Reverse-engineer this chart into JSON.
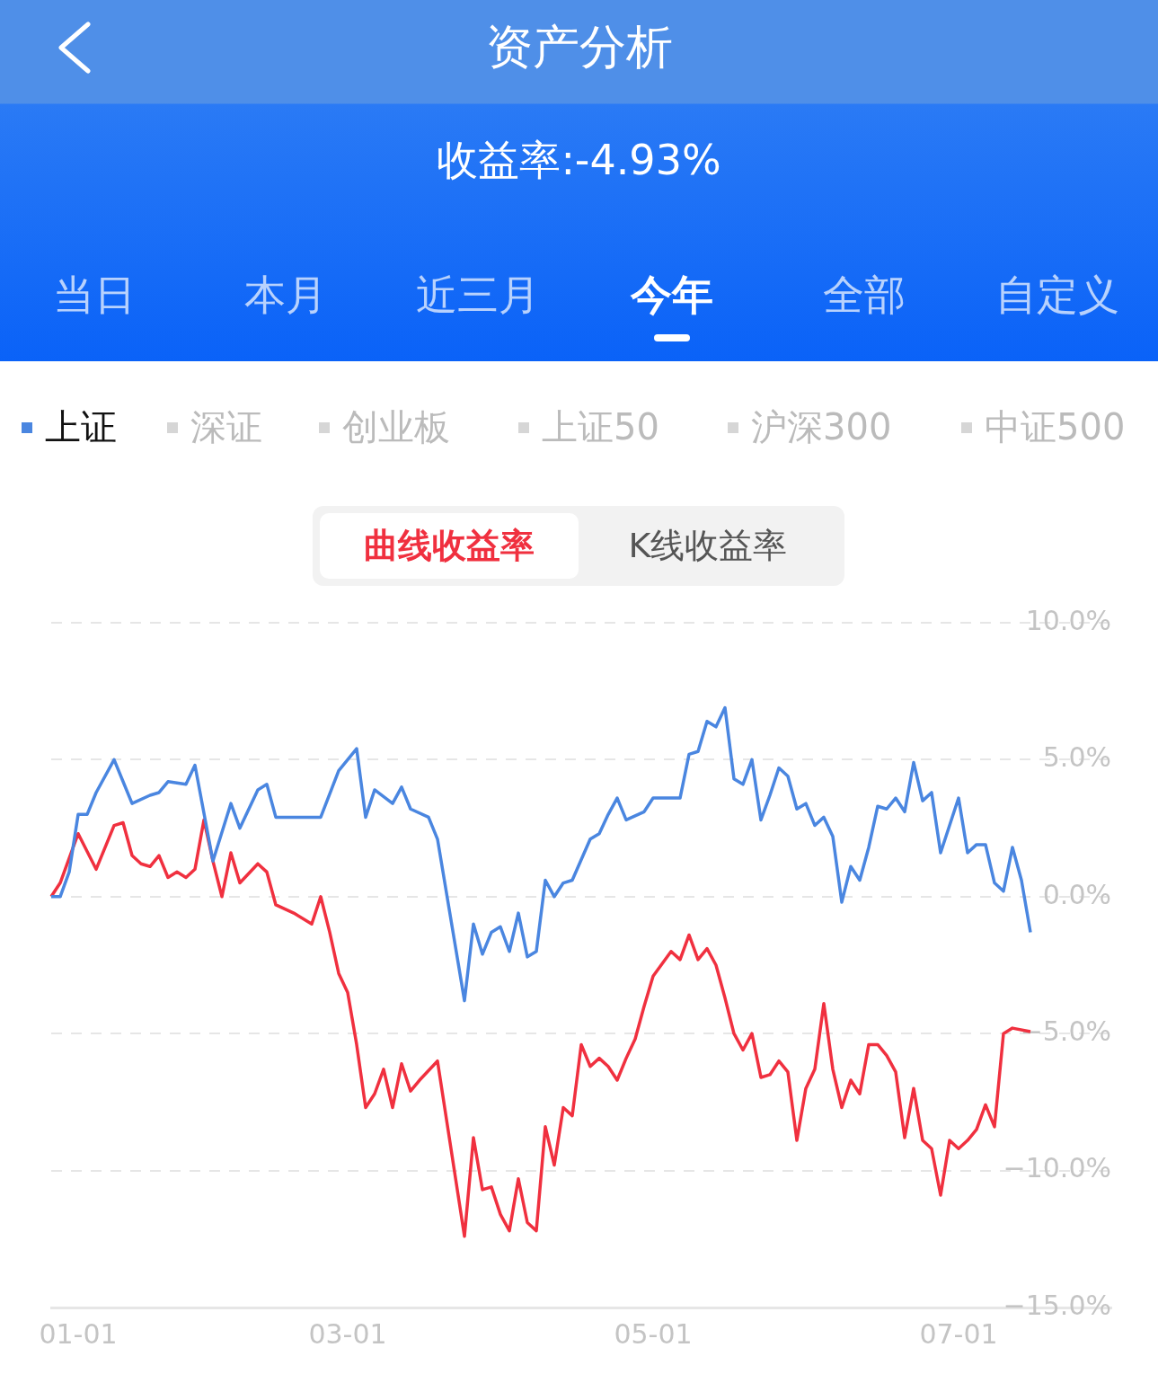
{
  "chart_data": {
    "type": "line",
    "title": "资产分析",
    "subtitle": "收益率:-4.93%",
    "annotations": [
      "当日",
      "本月",
      "近三月",
      "今年",
      "全部",
      "自定义",
      "深证",
      "创业板",
      "上证50",
      "沪深300",
      "中证500",
      "曲线收益率",
      "K线收益率"
    ],
    "categories": [
      null,
      null,
      null,
      "01-01",
      null,
      null,
      null,
      null,
      null,
      null,
      null,
      null,
      null,
      null,
      null,
      null,
      null,
      null,
      null,
      null,
      null,
      null,
      null,
      null,
      null,
      null,
      null,
      null,
      null,
      null,
      null,
      null,
      null,
      "03-01",
      null,
      null,
      null,
      null,
      null,
      null,
      null,
      null,
      null,
      null,
      null,
      null,
      null,
      null,
      null,
      null,
      null,
      null,
      null,
      null,
      null,
      null,
      null,
      null,
      null,
      null,
      null,
      null,
      null,
      null,
      null,
      null,
      null,
      "05-01",
      null,
      null,
      null,
      null,
      null,
      null,
      null,
      null,
      null,
      null,
      null,
      null,
      null,
      null,
      null,
      null,
      null,
      null,
      null,
      null,
      null,
      null,
      null,
      null,
      null,
      null,
      null,
      null,
      null,
      null,
      null,
      null,
      null,
      "07-01",
      null,
      null,
      null,
      null,
      null,
      null,
      null,
      null,
      null,
      null,
      null,
      null,
      null,
      null,
      null,
      null,
      null
    ],
    "ylim": [
      -15,
      10
    ],
    "yticks": [
      {
        "value": -15,
        "label": "−15.0%"
      },
      {
        "value": -10,
        "label": "−10.0%"
      },
      {
        "value": -5,
        "label": "−5.0%"
      },
      {
        "value": 0,
        "label": "0.0%"
      },
      {
        "value": 5,
        "label": "5.0%"
      },
      {
        "value": 10,
        "label": "10.0%"
      }
    ],
    "grid": "y",
    "legend": "top",
    "line_style": "solid",
    "series": [
      {
        "name": "上证",
        "color": "#4a86e0",
        "values": [
          0,
          0,
          0.9,
          3.0,
          3.0,
          3.8,
          null,
          5.0,
          4.2,
          3.4,
          null,
          3.7,
          3.8,
          4.2,
          null,
          4.1,
          4.8,
          null,
          1.3,
          null,
          3.4,
          2.5,
          null,
          3.9,
          4.1,
          2.9,
          null,
          null,
          null,
          null,
          2.9,
          null,
          4.6,
          null,
          5.4,
          2.9,
          3.9,
          null,
          3.4,
          4.0,
          3.2,
          null,
          2.9,
          2.1,
          null,
          null,
          -3.8,
          -1.0,
          -2.1,
          -1.3,
          -1.1,
          -2.0,
          -0.6,
          -2.2,
          -2.0,
          0.6,
          0,
          0.5,
          0.6,
          null,
          2.1,
          2.3,
          3.0,
          3.6,
          2.8,
          null,
          3.1,
          3.6,
          null,
          null,
          3.6,
          5.2,
          5.3,
          6.4,
          6.2,
          6.9,
          4.3,
          4.1,
          5.0,
          2.8,
          3.7,
          4.7,
          4.4,
          3.2,
          3.4,
          2.6,
          2.9,
          2.2,
          -0.2,
          1.1,
          0.6,
          1.8,
          3.3,
          3.2,
          3.6,
          3.1,
          4.9,
          3.5,
          3.8,
          1.6,
          2.6,
          3.6,
          1.6,
          1.9,
          1.9,
          0.5,
          0.2,
          1.8,
          0.6,
          -1.3,
          null,
          null,
          null,
          null,
          null,
          null,
          null,
          null,
          null
        ]
      },
      {
        "color": "#f0303f",
        "values": [
          0,
          0.5,
          null,
          2.3,
          null,
          1.0,
          null,
          2.6,
          2.7,
          1.5,
          1.2,
          1.1,
          1.5,
          0.7,
          0.9,
          0.7,
          1.0,
          2.8,
          1.3,
          0.0,
          1.6,
          0.5,
          null,
          1.2,
          0.9,
          -0.3,
          null,
          -0.6,
          null,
          -1.0,
          0.0,
          -1.3,
          -2.8,
          -3.5,
          -5.4,
          -7.7,
          -7.2,
          -6.3,
          -7.7,
          -6.1,
          -7.1,
          -6.7,
          null,
          -6.0,
          null,
          null,
          -12.4,
          -8.8,
          -10.7,
          -10.6,
          -11.6,
          -12.2,
          -10.3,
          -11.9,
          -12.2,
          -8.4,
          -9.8,
          -7.7,
          -8.0,
          -5.4,
          -6.2,
          -5.9,
          -6.2,
          -6.7,
          -5.9,
          -5.2,
          -4.0,
          -2.9,
          null,
          -2.0,
          -2.3,
          -1.4,
          -2.3,
          -1.9,
          -2.5,
          -3.7,
          -5.0,
          -5.6,
          -5.0,
          -6.6,
          -6.5,
          -6.0,
          -6.4,
          -8.9,
          -7.0,
          -6.3,
          -3.9,
          -6.3,
          -7.7,
          -6.7,
          -7.2,
          -5.4,
          -5.4,
          -5.8,
          -6.4,
          -8.8,
          -7.0,
          -8.9,
          -9.2,
          -10.9,
          -8.9,
          -9.2,
          -8.9,
          -8.5,
          -7.6,
          -8.4,
          -5.0,
          -4.8,
          null,
          -4.93,
          null,
          null,
          null,
          null,
          null,
          null,
          null,
          null,
          null
        ]
      }
    ]
  }
}
